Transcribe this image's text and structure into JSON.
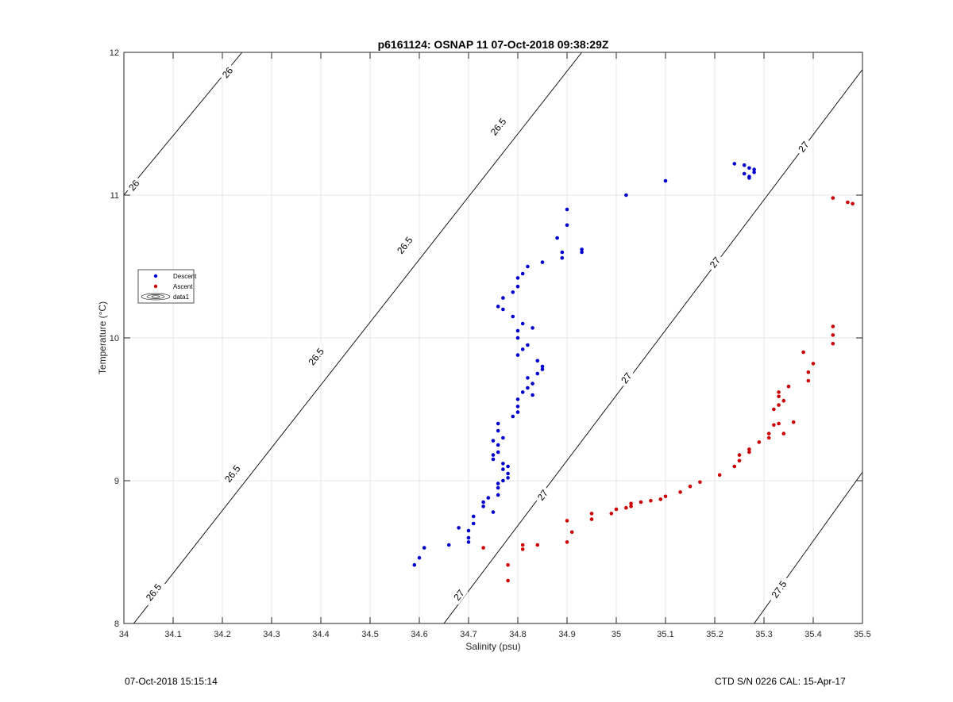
{
  "footer": {
    "timestamp": "07-Oct-2018 15:15:14",
    "instrument": "CTD S/N 0226  CAL: 15-Apr-17"
  },
  "chart_data": {
    "type": "scatter",
    "title": "p6161124: OSNAP 11 07-Oct-2018 09:38:29Z",
    "xlabel": "Salinity (psu)",
    "ylabel": "Temperature (°C)",
    "xlim": [
      34,
      35.5
    ],
    "ylim": [
      8,
      12
    ],
    "xticks": [
      "34",
      "34.1",
      "34.2",
      "34.3",
      "34.4",
      "34.5",
      "34.6",
      "34.7",
      "34.8",
      "34.9",
      "35",
      "35.1",
      "35.2",
      "35.3",
      "35.4",
      "35.5"
    ],
    "yticks": [
      "8",
      "9",
      "10",
      "11",
      "12"
    ],
    "grid": true,
    "legend_position": "left",
    "legend": [
      {
        "label": "Descent",
        "marker": "dot",
        "color": "#0000cc"
      },
      {
        "label": "Ascent",
        "marker": "dot",
        "color": "#cc0000"
      },
      {
        "label": "data1",
        "marker": "contour"
      }
    ],
    "contours": [
      {
        "level": "26",
        "color": "#000000",
        "points": [
          [
            34.0,
            11.0
          ],
          [
            34.24,
            12.0
          ]
        ]
      },
      {
        "level": "26.5",
        "color": "#000000",
        "points": [
          [
            34.02,
            8.0
          ],
          [
            34.93,
            12.0
          ]
        ]
      },
      {
        "level": "27",
        "color": "#000000",
        "points": [
          [
            34.65,
            8.0
          ],
          [
            35.5,
            11.88
          ]
        ]
      },
      {
        "level": "27.5",
        "color": "#000000",
        "points": [
          [
            35.28,
            8.0
          ],
          [
            35.5,
            9.06
          ]
        ]
      }
    ],
    "contour_labels": [
      {
        "text": "26",
        "x": 34.21,
        "y": 11.86
      },
      {
        "text": "26",
        "x": 34.02,
        "y": 11.07
      },
      {
        "text": "26.5",
        "x": 34.76,
        "y": 11.48
      },
      {
        "text": "26.5",
        "x": 34.57,
        "y": 10.65
      },
      {
        "text": "26.5",
        "x": 34.39,
        "y": 9.87
      },
      {
        "text": "26.5",
        "x": 34.22,
        "y": 9.05
      },
      {
        "text": "26.5",
        "x": 34.06,
        "y": 8.22
      },
      {
        "text": "27",
        "x": 35.38,
        "y": 11.34
      },
      {
        "text": "27",
        "x": 35.2,
        "y": 10.53
      },
      {
        "text": "27",
        "x": 35.02,
        "y": 9.72
      },
      {
        "text": "27",
        "x": 34.85,
        "y": 8.9
      },
      {
        "text": "27",
        "x": 34.68,
        "y": 8.2
      },
      {
        "text": "27.5",
        "x": 35.33,
        "y": 8.24
      }
    ],
    "series": [
      {
        "name": "Descent",
        "color": "#0000cc",
        "points": [
          [
            34.59,
            8.41
          ],
          [
            34.6,
            8.46
          ],
          [
            34.61,
            8.53
          ],
          [
            34.66,
            8.55
          ],
          [
            34.68,
            8.67
          ],
          [
            34.7,
            8.6
          ],
          [
            34.7,
            8.65
          ],
          [
            34.7,
            8.57
          ],
          [
            34.71,
            8.7
          ],
          [
            34.71,
            8.75
          ],
          [
            34.73,
            8.82
          ],
          [
            34.73,
            8.85
          ],
          [
            34.74,
            8.88
          ],
          [
            34.75,
            8.78
          ],
          [
            34.76,
            8.9
          ],
          [
            34.76,
            8.95
          ],
          [
            34.76,
            8.98
          ],
          [
            34.77,
            9.0
          ],
          [
            34.78,
            9.02
          ],
          [
            34.78,
            9.05
          ],
          [
            34.77,
            9.08
          ],
          [
            34.77,
            9.12
          ],
          [
            34.78,
            9.1
          ],
          [
            34.75,
            9.15
          ],
          [
            34.75,
            9.18
          ],
          [
            34.76,
            9.2
          ],
          [
            34.76,
            9.25
          ],
          [
            34.75,
            9.28
          ],
          [
            34.77,
            9.3
          ],
          [
            34.76,
            9.35
          ],
          [
            34.76,
            9.4
          ],
          [
            34.79,
            9.45
          ],
          [
            34.8,
            9.48
          ],
          [
            34.8,
            9.52
          ],
          [
            34.8,
            9.57
          ],
          [
            34.81,
            9.62
          ],
          [
            34.82,
            9.65
          ],
          [
            34.83,
            9.6
          ],
          [
            34.83,
            9.68
          ],
          [
            34.82,
            9.72
          ],
          [
            34.84,
            9.75
          ],
          [
            34.85,
            9.78
          ],
          [
            34.85,
            9.8
          ],
          [
            34.84,
            9.84
          ],
          [
            34.8,
            9.88
          ],
          [
            34.81,
            9.92
          ],
          [
            34.82,
            9.95
          ],
          [
            34.8,
            10.0
          ],
          [
            34.8,
            10.05
          ],
          [
            34.83,
            10.07
          ],
          [
            34.81,
            10.1
          ],
          [
            34.79,
            10.15
          ],
          [
            34.77,
            10.2
          ],
          [
            34.76,
            10.22
          ],
          [
            34.77,
            10.28
          ],
          [
            34.79,
            10.32
          ],
          [
            34.8,
            10.36
          ],
          [
            34.8,
            10.42
          ],
          [
            34.81,
            10.45
          ],
          [
            34.82,
            10.5
          ],
          [
            34.85,
            10.53
          ],
          [
            34.89,
            10.56
          ],
          [
            34.89,
            10.6
          ],
          [
            34.88,
            10.7
          ],
          [
            34.9,
            10.79
          ],
          [
            34.9,
            10.9
          ],
          [
            34.93,
            10.6
          ],
          [
            34.93,
            10.62
          ],
          [
            35.02,
            11.0
          ],
          [
            35.1,
            11.1
          ],
          [
            35.24,
            11.22
          ],
          [
            35.26,
            11.21
          ],
          [
            35.27,
            11.19
          ],
          [
            35.28,
            11.18
          ],
          [
            35.26,
            11.15
          ],
          [
            35.27,
            11.13
          ],
          [
            35.28,
            11.16
          ],
          [
            35.27,
            11.12
          ]
        ]
      },
      {
        "name": "Ascent",
        "color": "#cc0000",
        "points": [
          [
            34.73,
            8.53
          ],
          [
            34.78,
            8.3
          ],
          [
            34.78,
            8.41
          ],
          [
            34.81,
            8.52
          ],
          [
            34.81,
            8.55
          ],
          [
            34.84,
            8.55
          ],
          [
            34.9,
            8.57
          ],
          [
            34.9,
            8.72
          ],
          [
            34.91,
            8.64
          ],
          [
            34.95,
            8.73
          ],
          [
            34.95,
            8.77
          ],
          [
            34.99,
            8.77
          ],
          [
            35.0,
            8.8
          ],
          [
            35.02,
            8.81
          ],
          [
            35.03,
            8.82
          ],
          [
            35.03,
            8.84
          ],
          [
            35.05,
            8.85
          ],
          [
            35.07,
            8.86
          ],
          [
            35.09,
            8.87
          ],
          [
            35.1,
            8.89
          ],
          [
            35.13,
            8.92
          ],
          [
            35.15,
            8.96
          ],
          [
            35.17,
            8.99
          ],
          [
            35.21,
            9.04
          ],
          [
            35.24,
            9.1
          ],
          [
            35.25,
            9.14
          ],
          [
            35.25,
            9.18
          ],
          [
            35.27,
            9.22
          ],
          [
            35.27,
            9.2
          ],
          [
            35.29,
            9.27
          ],
          [
            35.31,
            9.3
          ],
          [
            35.31,
            9.33
          ],
          [
            35.32,
            9.39
          ],
          [
            35.34,
            9.33
          ],
          [
            35.33,
            9.4
          ],
          [
            35.36,
            9.41
          ],
          [
            35.32,
            9.5
          ],
          [
            35.33,
            9.53
          ],
          [
            35.34,
            9.56
          ],
          [
            35.33,
            9.59
          ],
          [
            35.33,
            9.62
          ],
          [
            35.35,
            9.66
          ],
          [
            35.39,
            9.7
          ],
          [
            35.39,
            9.76
          ],
          [
            35.4,
            9.82
          ],
          [
            35.38,
            9.9
          ],
          [
            35.44,
            9.96
          ],
          [
            35.44,
            10.02
          ],
          [
            35.44,
            10.08
          ],
          [
            35.44,
            10.98
          ],
          [
            35.47,
            10.95
          ],
          [
            35.48,
            10.94
          ]
        ]
      }
    ]
  }
}
